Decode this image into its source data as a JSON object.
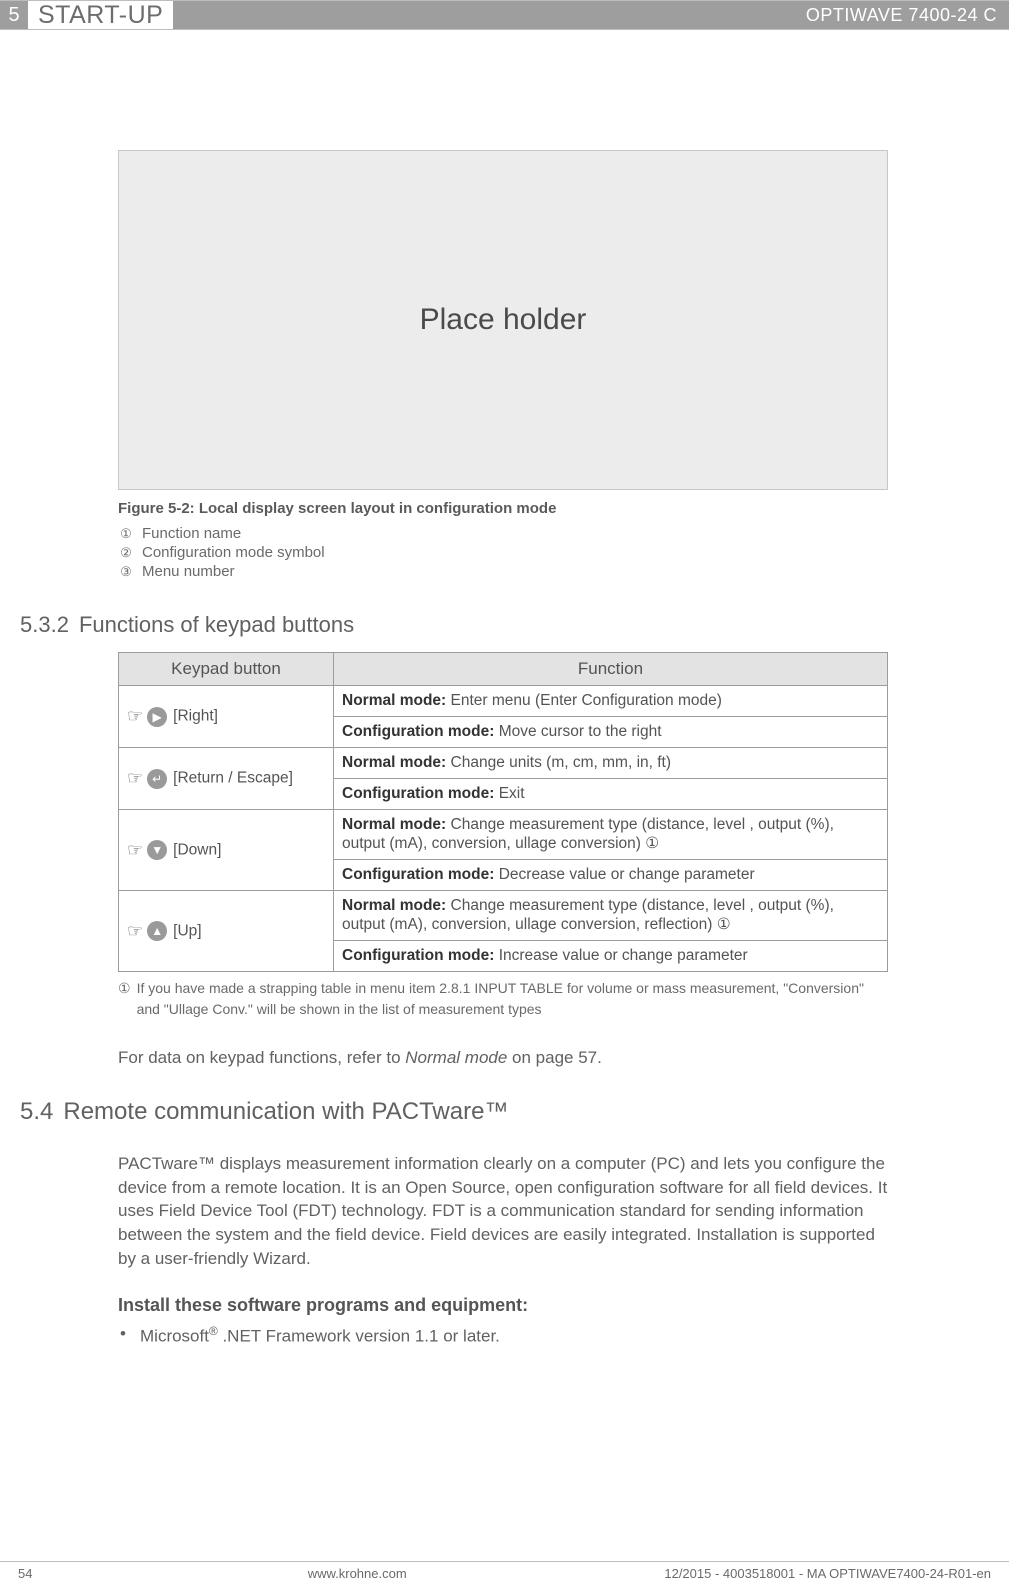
{
  "header": {
    "chapter_num": "5",
    "chapter_title": "START-UP",
    "product": "OPTIWAVE 7400-24 C"
  },
  "figure": {
    "placeholder_text": "Place holder",
    "caption": "Figure 5-2: Local display screen layout in configuration mode",
    "legend": [
      {
        "num": "①",
        "text": "Function name"
      },
      {
        "num": "②",
        "text": "Configuration mode symbol"
      },
      {
        "num": "③",
        "text": "Menu number"
      }
    ]
  },
  "section_532": {
    "number": "5.3.2",
    "title": "Functions of keypad buttons",
    "table_headers": {
      "col1": "Keypad button",
      "col2": "Function"
    },
    "rows": [
      {
        "key_glyph": "▶",
        "key_label": "[Right]",
        "normal_label": "Normal mode:",
        "normal_text": " Enter  menu (Enter Configuration mode)",
        "config_label": "Configuration mode:",
        "config_text": " Move cursor to the right"
      },
      {
        "key_glyph": "↵",
        "key_label": "[Return / Escape]",
        "normal_label": "Normal mode:",
        "normal_text": " Change units (m, cm, mm, in, ft)",
        "config_label": "Configuration mode:",
        "config_text": " Exit"
      },
      {
        "key_glyph": "▼",
        "key_label": "[Down]",
        "normal_label": "Normal mode:",
        "normal_text": " Change measurement type (distance, level , output (%), output (mA), conversion, ullage conversion) ①",
        "config_label": "Configuration mode:",
        "config_text": " Decrease value or change parameter"
      },
      {
        "key_glyph": "▲",
        "key_label": "[Up]",
        "normal_label": "Normal mode:",
        "normal_text": " Change measurement type (distance, level , output (%), output (mA), conversion, ullage conversion, reflection) ①",
        "config_label": "Configuration mode:",
        "config_text": " Increase value or change parameter"
      }
    ],
    "table_note_num": "①",
    "table_note": "If you have made a strapping table in menu item 2.8.1 INPUT TABLE for volume or mass measurement, \"Conversion\" and \"Ullage Conv.\" will be shown in the list of measurement types",
    "ref_para_pre": "For data on keypad functions, refer to ",
    "ref_para_italic": "Normal mode",
    "ref_para_post": " on page 57."
  },
  "section_54": {
    "number": "5.4",
    "title": "Remote communication with PACTware™",
    "para": "PACTware™  displays measurement information clearly on a computer (PC) and lets you configure the device from a remote location. It is an Open Source, open configuration software for all field devices. It uses Field Device Tool (FDT) technology. FDT is a communication standard for sending information between the system and the field device. Field devices are easily integrated. Installation is supported by a user-friendly Wizard.",
    "install_heading": "Install these software programs and equipment:",
    "bullets": [
      {
        "pre": "Microsoft",
        "sup": "®",
        "post": " .NET Framework version 1.1 or later."
      }
    ]
  },
  "footer": {
    "page": "54",
    "site": "www.krohne.com",
    "doc": "12/2015 - 4003518001 - MA OPTIWAVE7400-24-R01-en"
  },
  "colors": {
    "header_grey": "#9e9e9e",
    "text_grey": "#5a5a5a",
    "border_grey": "#bdbdbd",
    "placeholder_bg": "#ececec",
    "table_header_bg": "#e3e3e3"
  }
}
